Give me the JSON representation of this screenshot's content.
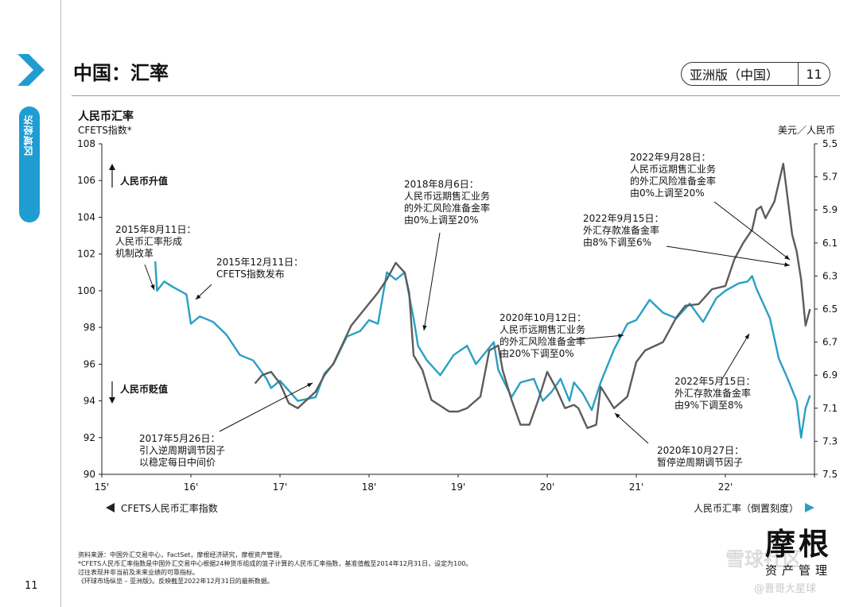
{
  "sidebar": {
    "section_tab": "区域经济",
    "page_number": "11"
  },
  "header": {
    "title": "中国：汇率",
    "edition": "亚洲版（中国）",
    "page": "11"
  },
  "chart_data": {
    "type": "line",
    "title": "人民币汇率",
    "subtitle": "CFETS指数*",
    "right_axis_title": "美元／人民币",
    "x_ticks": [
      "15'",
      "16'",
      "17'",
      "18'",
      "19'",
      "20'",
      "21'",
      "22'"
    ],
    "x_range": [
      2015,
      2023
    ],
    "left_axis": {
      "range": [
        90,
        108
      ],
      "ticks": [
        90,
        92,
        94,
        96,
        98,
        100,
        102,
        104,
        106,
        108
      ]
    },
    "right_axis": {
      "range": [
        7.5,
        5.5
      ],
      "inverted": true,
      "ticks": [
        "5.5",
        "5.7",
        "5.9",
        "6.1",
        "6.3",
        "6.5",
        "6.7",
        "6.9",
        "7.1",
        "7.3",
        "7.5"
      ]
    },
    "direction_labels": {
      "up": "人民币升值",
      "down": "人民币贬值"
    },
    "legend": {
      "left": "CFETS人民币汇率指数",
      "right": "人民币汇率（倒置刻度）"
    },
    "colors": {
      "cfets": "#2a9fc4",
      "usdcny": "#5c5c5c",
      "text": "#111111"
    },
    "series": [
      {
        "name": "CFETS人民币汇率指数",
        "axis": "left",
        "x": [
          2015.6,
          2015.62,
          2015.7,
          2015.8,
          2015.95,
          2016.0,
          2016.1,
          2016.25,
          2016.4,
          2016.55,
          2016.7,
          2016.85,
          2016.9,
          2017.0,
          2017.2,
          2017.4,
          2017.5,
          2017.6,
          2017.75,
          2017.9,
          2018.0,
          2018.1,
          2018.2,
          2018.3,
          2018.4,
          2018.5,
          2018.55,
          2018.65,
          2018.8,
          2018.95,
          2019.1,
          2019.2,
          2019.3,
          2019.4,
          2019.45,
          2019.6,
          2019.7,
          2019.85,
          2019.95,
          2020.05,
          2020.15,
          2020.25,
          2020.3,
          2020.4,
          2020.5,
          2020.6,
          2020.75,
          2020.9,
          2021.0,
          2021.15,
          2021.3,
          2021.45,
          2021.6,
          2021.75,
          2021.9,
          2022.0,
          2022.15,
          2022.25,
          2022.3,
          2022.35,
          2022.5,
          2022.6,
          2022.7,
          2022.8,
          2022.85,
          2022.9,
          2022.95
        ],
        "values": [
          101.6,
          100.0,
          100.5,
          100.2,
          99.8,
          98.2,
          98.6,
          98.3,
          97.6,
          96.5,
          96.2,
          95.2,
          94.7,
          95.1,
          94.0,
          94.2,
          95.5,
          96.0,
          97.5,
          97.8,
          98.4,
          98.2,
          101.0,
          100.6,
          101.0,
          98.5,
          97.0,
          96.2,
          95.4,
          96.5,
          97.0,
          96.0,
          96.6,
          97.2,
          95.7,
          94.2,
          95.0,
          95.2,
          94.0,
          94.5,
          95.2,
          94.0,
          95.0,
          94.4,
          93.5,
          95.0,
          96.8,
          98.2,
          98.4,
          99.5,
          98.8,
          98.5,
          99.3,
          98.3,
          99.6,
          100.0,
          100.4,
          100.5,
          100.8,
          100.1,
          98.5,
          96.3,
          95.2,
          94.0,
          92.0,
          93.6,
          94.3
        ]
      },
      {
        "name": "人民币汇率（倒置刻度）",
        "axis": "right",
        "x": [
          2016.72,
          2016.8,
          2016.9,
          2017.0,
          2017.1,
          2017.2,
          2017.4,
          2017.5,
          2017.6,
          2017.8,
          2017.95,
          2018.1,
          2018.2,
          2018.3,
          2018.4,
          2018.45,
          2018.5,
          2018.6,
          2018.7,
          2018.9,
          2019.0,
          2019.1,
          2019.25,
          2019.35,
          2019.45,
          2019.5,
          2019.6,
          2019.7,
          2019.8,
          2019.9,
          2020.0,
          2020.1,
          2020.2,
          2020.3,
          2020.35,
          2020.45,
          2020.55,
          2020.6,
          2020.75,
          2020.9,
          2021.0,
          2021.1,
          2021.3,
          2021.45,
          2021.55,
          2021.7,
          2021.85,
          2022.0,
          2022.1,
          2022.2,
          2022.3,
          2022.35,
          2022.4,
          2022.45,
          2022.55,
          2022.65,
          2022.75,
          2022.8,
          2022.85,
          2022.9,
          2022.95
        ],
        "values": [
          6.95,
          6.9,
          6.88,
          6.95,
          7.07,
          7.1,
          7.0,
          6.9,
          6.83,
          6.6,
          6.5,
          6.4,
          6.32,
          6.22,
          6.28,
          6.4,
          6.78,
          6.87,
          7.05,
          7.12,
          7.12,
          7.1,
          7.03,
          6.75,
          6.72,
          6.87,
          7.05,
          7.2,
          7.2,
          7.05,
          6.88,
          6.98,
          7.1,
          7.08,
          7.1,
          7.22,
          7.2,
          6.97,
          7.1,
          7.03,
          6.82,
          6.75,
          6.7,
          6.55,
          6.48,
          6.47,
          6.38,
          6.36,
          6.2,
          6.1,
          6.02,
          5.9,
          5.88,
          5.95,
          5.85,
          5.62,
          6.05,
          6.15,
          6.32,
          6.6,
          6.5
        ]
      }
    ],
    "annotations": [
      {
        "lines": [
          "2015年8月11日：",
          "人民币汇率形成",
          "机制改革"
        ]
      },
      {
        "lines": [
          "2015年12月11日：",
          "CFETS指数发布"
        ]
      },
      {
        "lines": [
          "2017年5月26日：",
          "引入逆周期调节因子",
          "以稳定每日中间价"
        ]
      },
      {
        "lines": [
          "2018年8月6日：",
          "人民币远期售汇业务",
          "的外汇风险准备金率",
          "由0%上调至20%"
        ]
      },
      {
        "lines": [
          "2020年10月12日：",
          "人民币远期售汇业务",
          "的外汇风险准备金率",
          "由20%下调至0%"
        ]
      },
      {
        "lines": [
          "2020年10月27日：",
          "暂停逆周期调节因子"
        ]
      },
      {
        "lines": [
          "2022年9月28日：",
          "人民币远期售汇业务",
          "的外汇风险准备金率",
          "由0%上调至20%"
        ]
      },
      {
        "lines": [
          "2022年9月15日：",
          "外汇存款准备金率",
          "由8%下调至6%"
        ]
      },
      {
        "lines": [
          "2022年5月15日：",
          "外汇存款准备金率",
          "由9%下调至8%"
        ]
      }
    ]
  },
  "footer": {
    "source_lines": [
      "资料来源：中国外汇交易中心，FactSet，摩根经济研究，摩根资产管理。",
      "*CFETS人民币汇率指数是中国外汇交易中心根据24种货币组成的篮子计算的人民币汇率指数，基准值截至2014年12月31日，设定为100。",
      "过往表现并非当前及未来业绩的可靠指标。",
      "《环球市场纵览 – 亚洲版》。反映截至2022年12月31日的最新数据。"
    ],
    "logo_main": "摩根",
    "logo_sub": "资产管理",
    "watermark_main": "雪球社区",
    "watermark_sub": "@晋哥大星球"
  }
}
